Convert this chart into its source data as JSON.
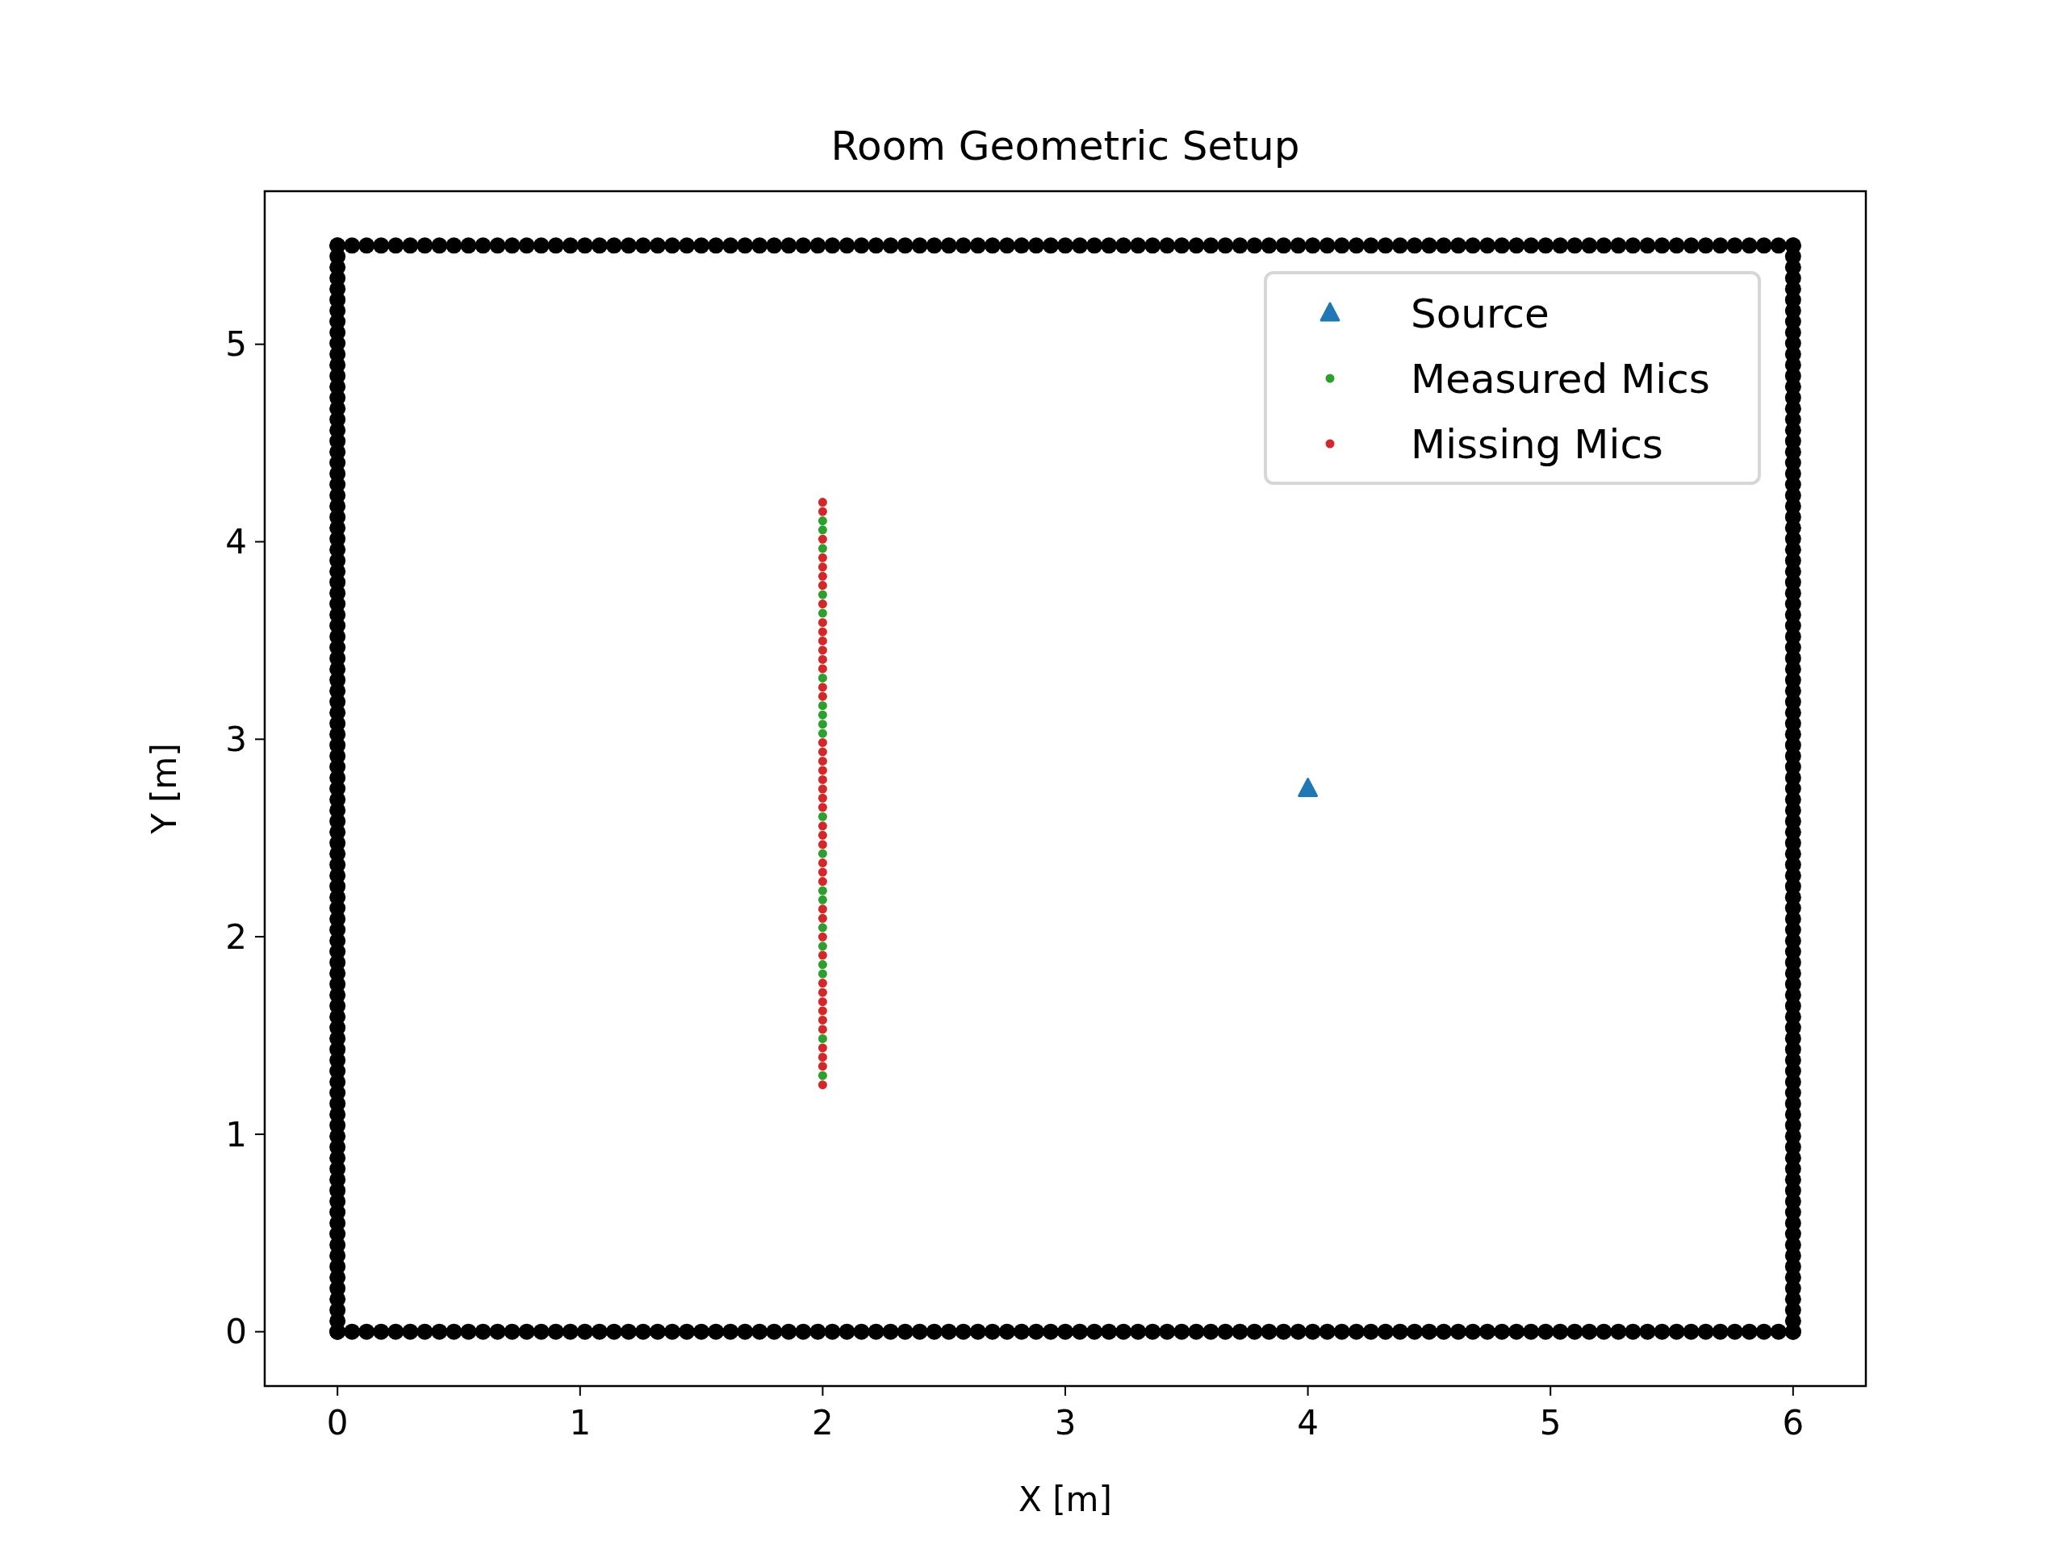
{
  "chart_data": {
    "type": "scatter",
    "title": "Room Geometric Setup",
    "xlabel": "X [m]",
    "ylabel": "Y [m]",
    "xlim": [
      -0.3,
      6.3
    ],
    "ylim": [
      -0.275,
      5.775
    ],
    "xticks": [
      0,
      1,
      2,
      3,
      4,
      5,
      6
    ],
    "yticks": [
      0,
      1,
      2,
      3,
      4,
      5
    ],
    "grid": false,
    "legend": "top right",
    "series": [
      {
        "color": "#000000",
        "marker": "circle",
        "x": [
          0,
          0.06,
          0.12,
          0.18,
          0.24,
          0.3,
          0.36,
          0.42,
          0.48,
          0.54,
          0.6,
          0.66,
          0.72,
          0.78,
          0.84,
          0.9,
          0.96,
          1.02,
          1.08,
          1.14,
          1.2,
          1.26,
          1.32,
          1.38,
          1.44,
          1.5,
          1.56,
          1.62,
          1.68,
          1.74,
          1.8,
          1.86,
          1.92,
          1.98,
          2.04,
          2.1,
          2.16,
          2.22,
          2.28,
          2.34,
          2.4,
          2.46,
          2.52,
          2.58,
          2.64,
          2.7,
          2.76,
          2.82,
          2.88,
          2.94,
          3,
          3.06,
          3.12,
          3.18,
          3.24,
          3.3,
          3.36,
          3.42,
          3.48,
          3.54,
          3.6,
          3.66,
          3.72,
          3.78,
          3.84,
          3.9,
          3.96,
          4.02,
          4.08,
          4.14,
          4.2,
          4.26,
          4.32,
          4.38,
          4.44,
          4.5,
          4.56,
          4.62,
          4.68,
          4.74,
          4.8,
          4.86,
          4.92,
          4.98,
          5.04,
          5.1,
          5.16,
          5.22,
          5.28,
          5.34,
          5.4,
          5.46,
          5.52,
          5.58,
          5.64,
          5.7,
          5.76,
          5.82,
          5.88,
          5.94,
          6
        ],
        "values": [
          0,
          0,
          0,
          0,
          0,
          0,
          0,
          0,
          0,
          0,
          0,
          0,
          0,
          0,
          0,
          0,
          0,
          0,
          0,
          0,
          0,
          0,
          0,
          0,
          0,
          0,
          0,
          0,
          0,
          0,
          0,
          0,
          0,
          0,
          0,
          0,
          0,
          0,
          0,
          0,
          0,
          0,
          0,
          0,
          0,
          0,
          0,
          0,
          0,
          0,
          0,
          0,
          0,
          0,
          0,
          0,
          0,
          0,
          0,
          0,
          0,
          0,
          0,
          0,
          0,
          0,
          0,
          0,
          0,
          0,
          0,
          0,
          0,
          0,
          0,
          0,
          0,
          0,
          0,
          0,
          0,
          0,
          0,
          0,
          0,
          0,
          0,
          0,
          0,
          0,
          0,
          0,
          0,
          0,
          0,
          0,
          0,
          0,
          0,
          0,
          0
        ]
      },
      {
        "color": "#000000",
        "marker": "circle",
        "x": [
          0,
          0.06,
          0.12,
          0.18,
          0.24,
          0.3,
          0.36,
          0.42,
          0.48,
          0.54,
          0.6,
          0.66,
          0.72,
          0.78,
          0.84,
          0.9,
          0.96,
          1.02,
          1.08,
          1.14,
          1.2,
          1.26,
          1.32,
          1.38,
          1.44,
          1.5,
          1.56,
          1.62,
          1.68,
          1.74,
          1.8,
          1.86,
          1.92,
          1.98,
          2.04,
          2.1,
          2.16,
          2.22,
          2.28,
          2.34,
          2.4,
          2.46,
          2.52,
          2.58,
          2.64,
          2.7,
          2.76,
          2.82,
          2.88,
          2.94,
          3,
          3.06,
          3.12,
          3.18,
          3.24,
          3.3,
          3.36,
          3.42,
          3.48,
          3.54,
          3.6,
          3.66,
          3.72,
          3.78,
          3.84,
          3.9,
          3.96,
          4.02,
          4.08,
          4.14,
          4.2,
          4.26,
          4.32,
          4.38,
          4.44,
          4.5,
          4.56,
          4.62,
          4.68,
          4.74,
          4.8,
          4.86,
          4.92,
          4.98,
          5.04,
          5.1,
          5.16,
          5.22,
          5.28,
          5.34,
          5.4,
          5.46,
          5.52,
          5.58,
          5.64,
          5.7,
          5.76,
          5.82,
          5.88,
          5.94,
          6
        ],
        "values": [
          5.5,
          5.5,
          5.5,
          5.5,
          5.5,
          5.5,
          5.5,
          5.5,
          5.5,
          5.5,
          5.5,
          5.5,
          5.5,
          5.5,
          5.5,
          5.5,
          5.5,
          5.5,
          5.5,
          5.5,
          5.5,
          5.5,
          5.5,
          5.5,
          5.5,
          5.5,
          5.5,
          5.5,
          5.5,
          5.5,
          5.5,
          5.5,
          5.5,
          5.5,
          5.5,
          5.5,
          5.5,
          5.5,
          5.5,
          5.5,
          5.5,
          5.5,
          5.5,
          5.5,
          5.5,
          5.5,
          5.5,
          5.5,
          5.5,
          5.5,
          5.5,
          5.5,
          5.5,
          5.5,
          5.5,
          5.5,
          5.5,
          5.5,
          5.5,
          5.5,
          5.5,
          5.5,
          5.5,
          5.5,
          5.5,
          5.5,
          5.5,
          5.5,
          5.5,
          5.5,
          5.5,
          5.5,
          5.5,
          5.5,
          5.5,
          5.5,
          5.5,
          5.5,
          5.5,
          5.5,
          5.5,
          5.5,
          5.5,
          5.5,
          5.5,
          5.5,
          5.5,
          5.5,
          5.5,
          5.5,
          5.5,
          5.5,
          5.5,
          5.5,
          5.5,
          5.5,
          5.5,
          5.5,
          5.5,
          5.5,
          5.5
        ]
      },
      {
        "color": "#000000",
        "marker": "circle",
        "x": [
          0,
          0,
          0,
          0,
          0,
          0,
          0,
          0,
          0,
          0,
          0,
          0,
          0,
          0,
          0,
          0,
          0,
          0,
          0,
          0,
          0,
          0,
          0,
          0,
          0,
          0,
          0,
          0,
          0,
          0,
          0,
          0,
          0,
          0,
          0,
          0,
          0,
          0,
          0,
          0,
          0,
          0,
          0,
          0,
          0,
          0,
          0,
          0,
          0,
          0,
          0,
          0,
          0,
          0,
          0,
          0,
          0,
          0,
          0,
          0,
          0,
          0,
          0,
          0,
          0,
          0,
          0,
          0,
          0,
          0,
          0,
          0,
          0,
          0,
          0,
          0,
          0,
          0,
          0,
          0,
          0,
          0,
          0,
          0,
          0,
          0,
          0,
          0,
          0,
          0,
          0,
          0,
          0,
          0,
          0,
          0,
          0,
          0,
          0,
          0,
          0
        ],
        "values": [
          0,
          0.055,
          0.11,
          0.165,
          0.22,
          0.275,
          0.33,
          0.385,
          0.44,
          0.495,
          0.55,
          0.605,
          0.66,
          0.715,
          0.77,
          0.825,
          0.88,
          0.935,
          0.99,
          1.045,
          1.1,
          1.155,
          1.21,
          1.265,
          1.32,
          1.375,
          1.43,
          1.485,
          1.54,
          1.595,
          1.65,
          1.705,
          1.76,
          1.815,
          1.87,
          1.925,
          1.98,
          2.035,
          2.09,
          2.145,
          2.2,
          2.255,
          2.31,
          2.365,
          2.42,
          2.475,
          2.53,
          2.585,
          2.64,
          2.695,
          2.75,
          2.805,
          2.86,
          2.915,
          2.97,
          3.025,
          3.08,
          3.135,
          3.19,
          3.245,
          3.3,
          3.355,
          3.41,
          3.465,
          3.52,
          3.575,
          3.63,
          3.685,
          3.74,
          3.795,
          3.85,
          3.905,
          3.96,
          4.015,
          4.07,
          4.125,
          4.18,
          4.235,
          4.29,
          4.345,
          4.4,
          4.455,
          4.51,
          4.565,
          4.62,
          4.675,
          4.73,
          4.785,
          4.84,
          4.895,
          4.95,
          5.005,
          5.06,
          5.115,
          5.17,
          5.225,
          5.28,
          5.335,
          5.39,
          5.445,
          5.5
        ]
      },
      {
        "color": "#000000",
        "marker": "circle",
        "x": [
          6,
          6,
          6,
          6,
          6,
          6,
          6,
          6,
          6,
          6,
          6,
          6,
          6,
          6,
          6,
          6,
          6,
          6,
          6,
          6,
          6,
          6,
          6,
          6,
          6,
          6,
          6,
          6,
          6,
          6,
          6,
          6,
          6,
          6,
          6,
          6,
          6,
          6,
          6,
          6,
          6,
          6,
          6,
          6,
          6,
          6,
          6,
          6,
          6,
          6,
          6,
          6,
          6,
          6,
          6,
          6,
          6,
          6,
          6,
          6,
          6,
          6,
          6,
          6,
          6,
          6,
          6,
          6,
          6,
          6,
          6,
          6,
          6,
          6,
          6,
          6,
          6,
          6,
          6,
          6,
          6,
          6,
          6,
          6,
          6,
          6,
          6,
          6,
          6,
          6,
          6,
          6,
          6,
          6,
          6,
          6,
          6,
          6,
          6,
          6,
          6
        ],
        "values": [
          0,
          0.055,
          0.11,
          0.165,
          0.22,
          0.275,
          0.33,
          0.385,
          0.44,
          0.495,
          0.55,
          0.605,
          0.66,
          0.715,
          0.77,
          0.825,
          0.88,
          0.935,
          0.99,
          1.045,
          1.1,
          1.155,
          1.21,
          1.265,
          1.32,
          1.375,
          1.43,
          1.485,
          1.54,
          1.595,
          1.65,
          1.705,
          1.76,
          1.815,
          1.87,
          1.925,
          1.98,
          2.035,
          2.09,
          2.145,
          2.2,
          2.255,
          2.31,
          2.365,
          2.42,
          2.475,
          2.53,
          2.585,
          2.64,
          2.695,
          2.75,
          2.805,
          2.86,
          2.915,
          2.97,
          3.025,
          3.08,
          3.135,
          3.19,
          3.245,
          3.3,
          3.355,
          3.41,
          3.465,
          3.52,
          3.575,
          3.63,
          3.685,
          3.74,
          3.795,
          3.85,
          3.905,
          3.96,
          4.015,
          4.07,
          4.125,
          4.18,
          4.235,
          4.29,
          4.345,
          4.4,
          4.455,
          4.51,
          4.565,
          4.62,
          4.675,
          4.73,
          4.785,
          4.84,
          4.895,
          4.95,
          5.005,
          5.06,
          5.115,
          5.17,
          5.225,
          5.28,
          5.335,
          5.39,
          5.445,
          5.5
        ]
      },
      {
        "name": "Source",
        "color": "#1f77b4",
        "marker": "triangle",
        "x": [
          4
        ],
        "values": [
          2.75
        ]
      },
      {
        "name": "Measured Mics",
        "color": "#2ca02c",
        "marker": "circle",
        "x": [
          2,
          2,
          2,
          2,
          2,
          2,
          2,
          2,
          2,
          2,
          2,
          2,
          2,
          2,
          2,
          2,
          2,
          2,
          2,
          2
        ],
        "values": [
          4.106,
          4.06,
          3.966,
          3.732,
          3.638,
          3.31,
          3.17,
          3.123,
          3.076,
          3.029,
          2.608,
          2.421,
          2.233,
          2.187,
          2.046,
          1.952,
          1.859,
          1.812,
          1.484,
          1.297
        ]
      },
      {
        "name": "Missing Mics",
        "color": "#d62728",
        "marker": "circle",
        "x": [
          2,
          2,
          2,
          2,
          2,
          2,
          2,
          2,
          2,
          2,
          2,
          2,
          2,
          2,
          2,
          2,
          2,
          2,
          2,
          2,
          2,
          2,
          2,
          2,
          2,
          2,
          2,
          2,
          2,
          2,
          2,
          2,
          2,
          2,
          2,
          2,
          2,
          2,
          2,
          2,
          2,
          2,
          2,
          2
        ],
        "values": [
          4.2,
          4.153,
          4.013,
          3.919,
          3.872,
          3.825,
          3.779,
          3.685,
          3.591,
          3.544,
          3.498,
          3.451,
          3.404,
          3.357,
          3.263,
          3.217,
          2.983,
          2.936,
          2.889,
          2.842,
          2.795,
          2.748,
          2.702,
          2.655,
          2.561,
          2.514,
          2.467,
          2.374,
          2.327,
          2.28,
          2.14,
          2.093,
          1.999,
          1.906,
          1.765,
          1.718,
          1.671,
          1.625,
          1.578,
          1.531,
          1.437,
          1.39,
          1.344,
          1.25
        ]
      }
    ]
  }
}
